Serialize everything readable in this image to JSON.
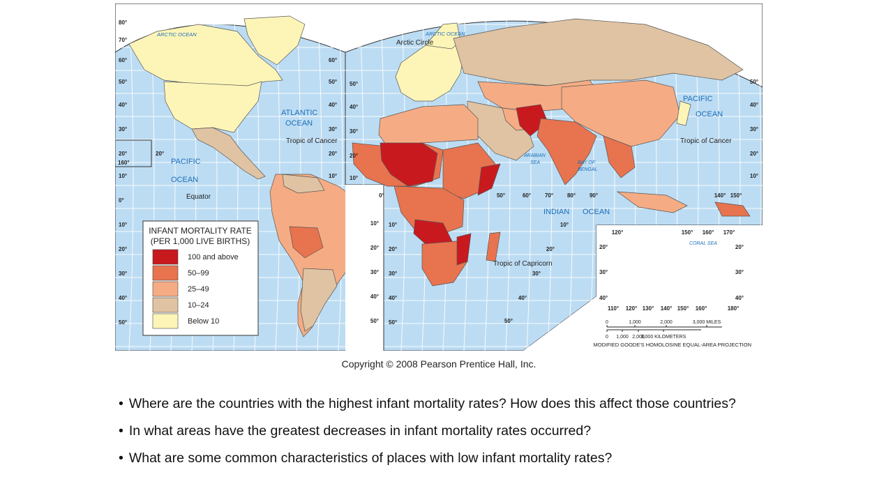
{
  "map": {
    "title_lines": [
      "INFANT MORTALITY RATE",
      "(PER 1,000 LIVE BIRTHS)"
    ],
    "legend": [
      {
        "label": "100 and above",
        "color": "#c8191f"
      },
      {
        "label": "50–99",
        "color": "#e8734f"
      },
      {
        "label": "25–49",
        "color": "#f5ac84"
      },
      {
        "label": "10–24",
        "color": "#dfc3a3"
      },
      {
        "label": "Below 10",
        "color": "#fdf5b8"
      }
    ],
    "ocean_color": "#bcdcf3",
    "grid_color": "#ffffff",
    "labels": {
      "arctic_ocean_w": "ARCTIC OCEAN",
      "arctic_ocean_e": "ARCTIC OCEAN",
      "arctic_circle": "Arctic Circle",
      "atlantic": "ATLANTIC",
      "atlantic_ocean": "OCEAN",
      "pacific_w": "PACIFIC",
      "pacific_w_ocean": "OCEAN",
      "pacific_e": "PACIFIC",
      "pacific_e_ocean": "OCEAN",
      "tropic_cancer_w": "Tropic of Cancer",
      "tropic_cancer_e": "Tropic of Cancer",
      "tropic_capricorn": "Tropic of Capricorn",
      "equator": "Equator",
      "arabian_sea": "ARABIAN",
      "arabian_sea_2": "SEA",
      "bay_bengal": "BAY OF",
      "bay_bengal_2": "BENGAL",
      "indian": "INDIAN",
      "indian_ocean": "OCEAN",
      "coral_sea": "CORAL  SEA"
    },
    "lat_left": [
      "80°",
      "70°",
      "60°",
      "50°",
      "40°",
      "30°",
      "20°",
      "10°",
      "0°",
      "10°",
      "20°",
      "30°",
      "40°",
      "50°"
    ],
    "lat_mid": [
      "60°",
      "50°",
      "40°",
      "30°",
      "20°",
      "10°"
    ],
    "lat_rightside": [
      "50°",
      "40°",
      "30°",
      "20°",
      "10°"
    ],
    "lon_bottom": [
      "0°",
      "50°",
      "60°",
      "70°",
      "80°",
      "90°",
      "140°",
      "150°"
    ],
    "south_africa_lat": [
      "10°",
      "20°",
      "30°",
      "40°",
      "50°"
    ],
    "south_lat_mid": [
      "10°",
      "20°",
      "30°",
      "40°",
      "50°"
    ],
    "aus_top": [
      "120°",
      "150°",
      "160°",
      "170°"
    ],
    "aus_bottom": [
      "110°",
      "120°",
      "130°",
      "140°",
      "150°",
      "160°",
      "180°"
    ],
    "aus_side": [
      "20°",
      "30°",
      "40°"
    ],
    "hawaii_lat": "20°",
    "hawaii_lon": "160°",
    "scale_miles": {
      "ticks": [
        "0",
        "1,000",
        "2,000",
        "3,000 MILES"
      ]
    },
    "scale_km": {
      "ticks": [
        "0",
        "1,000",
        "2,000",
        "3,000 KILOMETERS"
      ]
    },
    "projection": "MODIFIED GOODE'S HOMOLOSINE EQUAL-AREA PROJECTION"
  },
  "copyright": "Copyright © 2008 Pearson Prentice Hall, Inc.",
  "questions": [
    "Where are the countries with the highest infant mortality rates?  How does this affect those countries?",
    "In what areas have the greatest decreases in infant mortality rates occurred?",
    "What are some common characteristics of places with low infant mortality rates?"
  ],
  "bullet": "•"
}
